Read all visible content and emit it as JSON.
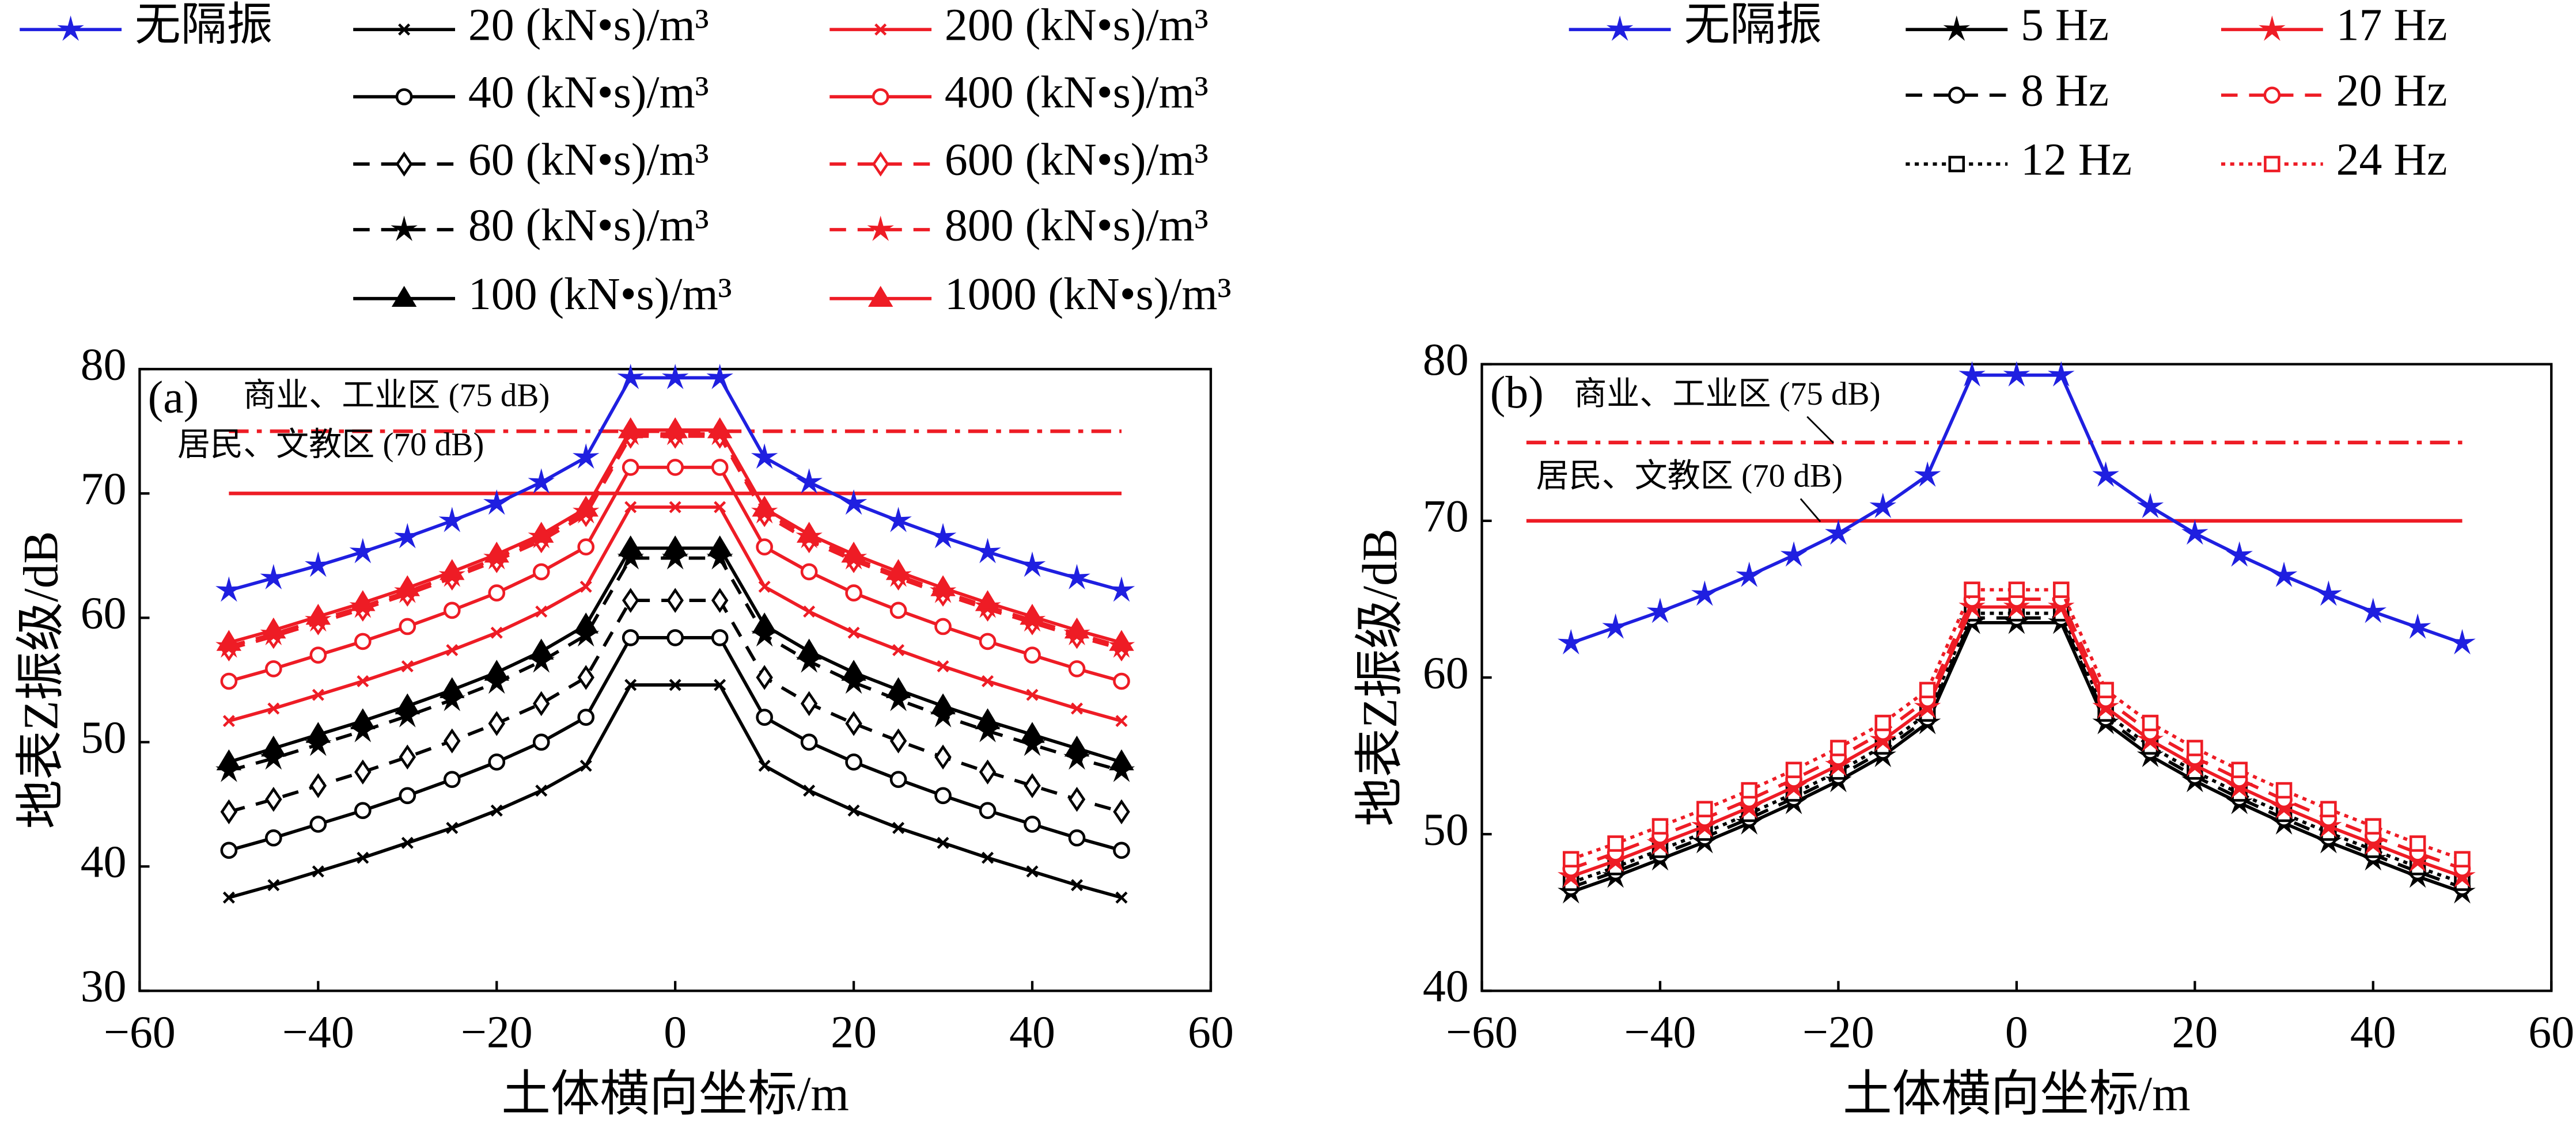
{
  "chart_data": [
    {
      "type": "line",
      "panel_label": "(a)",
      "xlabel": "土体横向坐标/m",
      "ylabel": "地表Z振级/dB",
      "xlim": [
        -60,
        60
      ],
      "ylim": [
        30,
        80
      ],
      "xticks": [
        {
          "value": -60,
          "label": "−60"
        },
        {
          "value": -40,
          "label": "−40"
        },
        {
          "value": -20,
          "label": "−20"
        },
        0,
        20,
        40,
        60
      ],
      "yticks": [
        30,
        40,
        50,
        60,
        70,
        80
      ],
      "x": [
        -50,
        -45,
        -40,
        -35,
        -30,
        -25,
        -20,
        -15,
        -10,
        -5,
        0,
        5,
        10,
        15,
        20,
        25,
        30,
        35,
        40,
        45,
        50
      ],
      "ref_lines": [
        {
          "value": 75,
          "x": [
            -50,
            50
          ],
          "label": "商业、工业区 (75 dB)",
          "color": "#ee1c25",
          "style": "dashdot"
        },
        {
          "value": 70,
          "x": [
            -50,
            50
          ],
          "label": "居民、文教区 (70 dB)",
          "color": "#ee1c25",
          "style": "solid"
        }
      ],
      "series": [
        {
          "name": "无隔振",
          "color": "#1f1fe0",
          "style": "solid",
          "marker": "star",
          "marker_filled": true,
          "values": [
            62.2,
            63.2,
            64.2,
            65.3,
            66.5,
            67.8,
            69.2,
            70.9,
            72.9,
            79.3,
            79.3,
            79.3,
            72.9,
            70.9,
            69.2,
            67.8,
            66.5,
            65.3,
            64.2,
            63.2,
            62.2
          ]
        },
        {
          "name": "20 (kN•s)/m³",
          "color": "#000000",
          "style": "solid",
          "marker": "x",
          "marker_filled": false,
          "values": [
            37.5,
            38.5,
            39.6,
            40.7,
            41.9,
            43.1,
            44.5,
            46.1,
            48.1,
            54.6,
            54.6,
            54.6,
            48.1,
            46.1,
            44.5,
            43.1,
            41.9,
            40.7,
            39.6,
            38.5,
            37.5
          ]
        },
        {
          "name": "40 (kN•s)/m³",
          "color": "#000000",
          "style": "solid",
          "marker": "circle",
          "marker_filled": false,
          "values": [
            41.3,
            42.3,
            43.4,
            44.5,
            45.7,
            47.0,
            48.4,
            50.0,
            52.0,
            58.4,
            58.4,
            58.4,
            52.0,
            50.0,
            48.4,
            47.0,
            45.7,
            44.5,
            43.4,
            42.3,
            41.3
          ]
        },
        {
          "name": "60 (kN•s)/m³",
          "color": "#000000",
          "style": "dashed",
          "marker": "diamond",
          "marker_filled": false,
          "values": [
            44.4,
            45.4,
            46.5,
            47.6,
            48.8,
            50.1,
            51.5,
            53.1,
            55.2,
            61.4,
            61.4,
            61.4,
            55.2,
            53.1,
            51.5,
            50.1,
            48.8,
            47.6,
            46.5,
            45.4,
            44.4
          ]
        },
        {
          "name": "80 (kN•s)/m³",
          "color": "#000000",
          "style": "dashed",
          "marker": "star",
          "marker_filled": true,
          "values": [
            47.7,
            48.7,
            49.8,
            50.9,
            52.1,
            53.4,
            54.8,
            56.5,
            58.6,
            64.8,
            64.8,
            64.8,
            58.6,
            56.5,
            54.8,
            53.4,
            52.1,
            50.9,
            49.8,
            48.7,
            47.7
          ]
        },
        {
          "name": "100 (kN•s)/m³",
          "color": "#000000",
          "style": "solid",
          "marker": "triangle",
          "marker_filled": true,
          "values": [
            48.4,
            49.5,
            50.6,
            51.7,
            52.9,
            54.2,
            55.6,
            57.3,
            59.4,
            65.6,
            65.6,
            65.6,
            59.4,
            57.3,
            55.6,
            54.2,
            52.9,
            51.7,
            50.6,
            49.5,
            48.4
          ]
        },
        {
          "name": "200 (kN•s)/m³",
          "color": "#ee1c25",
          "style": "solid",
          "marker": "x",
          "marker_filled": false,
          "values": [
            51.7,
            52.7,
            53.8,
            54.9,
            56.1,
            57.4,
            58.8,
            60.5,
            62.5,
            68.9,
            68.9,
            68.9,
            62.5,
            60.5,
            58.8,
            57.4,
            56.1,
            54.9,
            53.8,
            52.7,
            51.7
          ]
        },
        {
          "name": "400 (kN•s)/m³",
          "color": "#ee1c25",
          "style": "solid",
          "marker": "circle",
          "marker_filled": false,
          "values": [
            54.9,
            55.9,
            57.0,
            58.1,
            59.3,
            60.6,
            62.0,
            63.7,
            65.7,
            72.1,
            72.1,
            72.1,
            65.7,
            63.7,
            62.0,
            60.6,
            59.3,
            58.1,
            57.0,
            55.9,
            54.9
          ]
        },
        {
          "name": "600 (kN•s)/m³",
          "color": "#ee1c25",
          "style": "dashed",
          "marker": "diamond",
          "marker_filled": false,
          "values": [
            57.5,
            58.5,
            59.6,
            60.7,
            61.9,
            63.2,
            64.6,
            66.2,
            68.3,
            74.6,
            74.6,
            74.6,
            68.3,
            66.2,
            64.6,
            63.2,
            61.9,
            60.7,
            59.6,
            58.5,
            57.5
          ]
        },
        {
          "name": "800 (kN•s)/m³",
          "color": "#ee1c25",
          "style": "dashed",
          "marker": "star",
          "marker_filled": true,
          "values": [
            57.7,
            58.7,
            59.8,
            60.9,
            62.1,
            63.4,
            64.8,
            66.5,
            68.5,
            74.8,
            74.8,
            74.8,
            68.5,
            66.5,
            64.8,
            63.4,
            62.1,
            60.9,
            59.8,
            58.7,
            57.7
          ]
        },
        {
          "name": "1000 (kN•s)/m³",
          "color": "#ee1c25",
          "style": "solid",
          "marker": "triangle",
          "marker_filled": true,
          "values": [
            58.0,
            59.0,
            60.1,
            61.2,
            62.4,
            63.7,
            65.1,
            66.7,
            68.8,
            75.1,
            75.1,
            75.1,
            68.8,
            66.7,
            65.1,
            63.7,
            62.4,
            61.2,
            60.1,
            59.0,
            58.0
          ]
        }
      ]
    },
    {
      "type": "line",
      "panel_label": "(b)",
      "xlabel": "土体横向坐标/m",
      "ylabel": "地表Z振级/dB",
      "xlim": [
        -60,
        60
      ],
      "ylim": [
        40,
        80
      ],
      "xticks": [
        {
          "value": -60,
          "label": "−60"
        },
        {
          "value": -40,
          "label": "−40"
        },
        {
          "value": -20,
          "label": "−20"
        },
        0,
        20,
        40,
        60
      ],
      "yticks": [
        40,
        50,
        60,
        70,
        80
      ],
      "x": [
        -50,
        -45,
        -40,
        -35,
        -30,
        -25,
        -20,
        -15,
        -10,
        -5,
        0,
        5,
        10,
        15,
        20,
        25,
        30,
        35,
        40,
        45,
        50
      ],
      "ref_lines": [
        {
          "value": 75,
          "x": [
            -55,
            50
          ],
          "label": "商业、工业区 (75 dB)",
          "color": "#ee1c25",
          "style": "dashdot"
        },
        {
          "value": 70,
          "x": [
            -55,
            50
          ],
          "label": "居民、文教区 (70 dB)",
          "color": "#ee1c25",
          "style": "solid"
        }
      ],
      "series": [
        {
          "name": "无隔振",
          "color": "#1f1fe0",
          "style": "solid",
          "marker": "star",
          "marker_filled": true,
          "values": [
            62.2,
            63.2,
            64.2,
            65.3,
            66.5,
            67.8,
            69.2,
            70.9,
            72.9,
            79.3,
            79.3,
            79.3,
            72.9,
            70.9,
            69.2,
            67.8,
            66.5,
            65.3,
            64.2,
            63.2,
            62.2
          ]
        },
        {
          "name": "5 Hz",
          "color": "#000000",
          "style": "solid",
          "marker": "star",
          "marker_filled": true,
          "values": [
            46.3,
            47.3,
            48.4,
            49.5,
            50.7,
            52.0,
            53.4,
            55.0,
            57.1,
            63.5,
            63.5,
            63.5,
            57.1,
            55.0,
            53.4,
            52.0,
            50.7,
            49.5,
            48.4,
            47.3,
            46.3
          ]
        },
        {
          "name": "8 Hz",
          "color": "#000000",
          "style": "dashed",
          "marker": "circle",
          "marker_filled": false,
          "values": [
            46.6,
            47.6,
            48.7,
            49.8,
            51.0,
            52.3,
            53.7,
            55.3,
            57.4,
            63.8,
            63.8,
            63.8,
            57.4,
            55.3,
            53.7,
            52.3,
            51.0,
            49.8,
            48.7,
            47.6,
            46.6
          ]
        },
        {
          "name": "12 Hz",
          "color": "#000000",
          "style": "dotted",
          "marker": "square",
          "marker_filled": false,
          "values": [
            46.9,
            47.9,
            49.0,
            50.1,
            51.3,
            52.6,
            54.0,
            55.6,
            57.7,
            64.1,
            64.1,
            64.1,
            57.7,
            55.6,
            54.0,
            52.6,
            51.3,
            50.1,
            49.0,
            47.9,
            46.9
          ]
        },
        {
          "name": "17 Hz",
          "color": "#ee1c25",
          "style": "solid",
          "marker": "star",
          "marker_filled": true,
          "values": [
            47.3,
            48.3,
            49.4,
            50.5,
            51.7,
            53.0,
            54.4,
            56.0,
            58.1,
            64.5,
            64.5,
            64.5,
            58.1,
            56.0,
            54.4,
            53.0,
            51.7,
            50.5,
            49.4,
            48.3,
            47.3
          ]
        },
        {
          "name": "20 Hz",
          "color": "#ee1c25",
          "style": "dashed",
          "marker": "circle",
          "marker_filled": false,
          "values": [
            47.8,
            48.8,
            49.9,
            51.0,
            52.2,
            53.5,
            54.9,
            56.5,
            58.6,
            65.0,
            65.0,
            65.0,
            58.6,
            56.5,
            54.9,
            53.5,
            52.2,
            51.0,
            49.9,
            48.8,
            47.8
          ]
        },
        {
          "name": "24 Hz",
          "color": "#ee1c25",
          "style": "dotted",
          "marker": "square",
          "marker_filled": false,
          "values": [
            48.4,
            49.4,
            50.5,
            51.6,
            52.8,
            54.1,
            55.5,
            57.1,
            59.2,
            65.6,
            65.6,
            65.6,
            59.2,
            57.1,
            55.5,
            54.1,
            52.8,
            51.6,
            50.5,
            49.4,
            48.4
          ]
        }
      ]
    }
  ]
}
